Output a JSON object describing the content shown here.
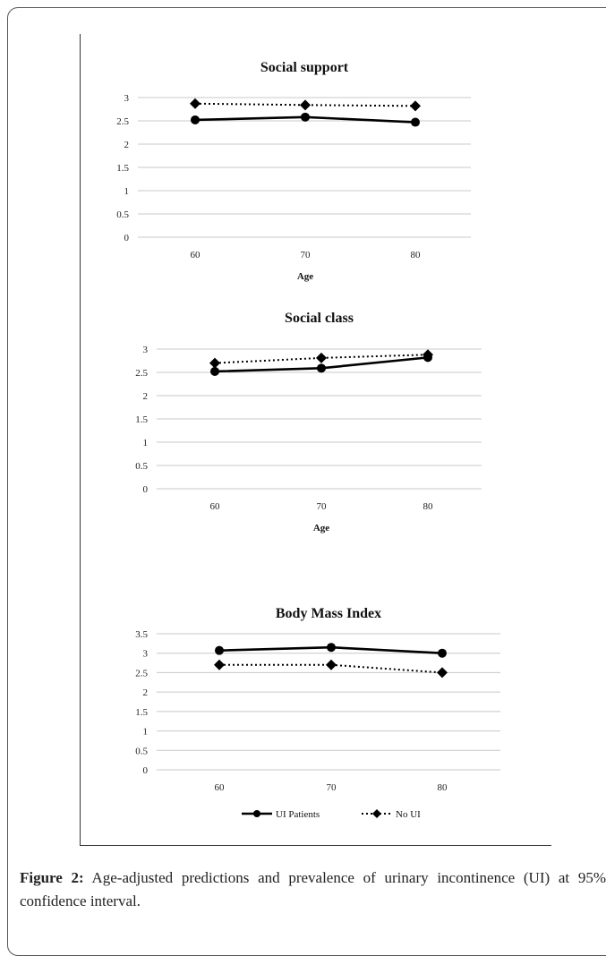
{
  "chart_data": [
    {
      "type": "line",
      "title": "Social support",
      "xlabel": "Age",
      "ylabel": "",
      "categories": [
        "60",
        "70",
        "80"
      ],
      "ylim": [
        0,
        3
      ],
      "yticks": [
        "0",
        "0.5",
        "1",
        "1.5",
        "2",
        "2.5",
        "3"
      ],
      "grid": true,
      "series": [
        {
          "name": "UI Patients",
          "values": [
            2.52,
            2.58,
            2.47
          ],
          "style": "solid",
          "marker": "circle"
        },
        {
          "name": "No UI",
          "values": [
            2.87,
            2.84,
            2.82
          ],
          "style": "dotted",
          "marker": "diamond"
        }
      ]
    },
    {
      "type": "line",
      "title": "Social class",
      "xlabel": "Age",
      "ylabel": "",
      "categories": [
        "60",
        "70",
        "80"
      ],
      "ylim": [
        0,
        3
      ],
      "yticks": [
        "0",
        "0.5",
        "1",
        "1.5",
        "2",
        "2.5",
        "3"
      ],
      "grid": true,
      "series": [
        {
          "name": "UI Patients",
          "values": [
            2.52,
            2.59,
            2.82
          ],
          "style": "solid",
          "marker": "circle"
        },
        {
          "name": "No UI",
          "values": [
            2.7,
            2.81,
            2.88
          ],
          "style": "dotted",
          "marker": "diamond"
        }
      ]
    },
    {
      "type": "line",
      "title": "Body Mass Index",
      "xlabel": "",
      "ylabel": "",
      "categories": [
        "60",
        "70",
        "80"
      ],
      "ylim": [
        0,
        3.5
      ],
      "yticks": [
        "0",
        "0.5",
        "1",
        "1.5",
        "2",
        "2.5",
        "3",
        "3.5"
      ],
      "grid": true,
      "legend": "bottom",
      "series": [
        {
          "name": "UI Patients",
          "values": [
            3.07,
            3.15,
            3.0
          ],
          "style": "solid",
          "marker": "circle"
        },
        {
          "name": "No UI",
          "values": [
            2.7,
            2.7,
            2.5
          ],
          "style": "dotted",
          "marker": "diamond"
        }
      ]
    }
  ],
  "caption": {
    "label": "Figure 2:",
    "text": " Age-adjusted predictions and prevalence of urinary incontinence (UI) at 95% confidence interval."
  }
}
